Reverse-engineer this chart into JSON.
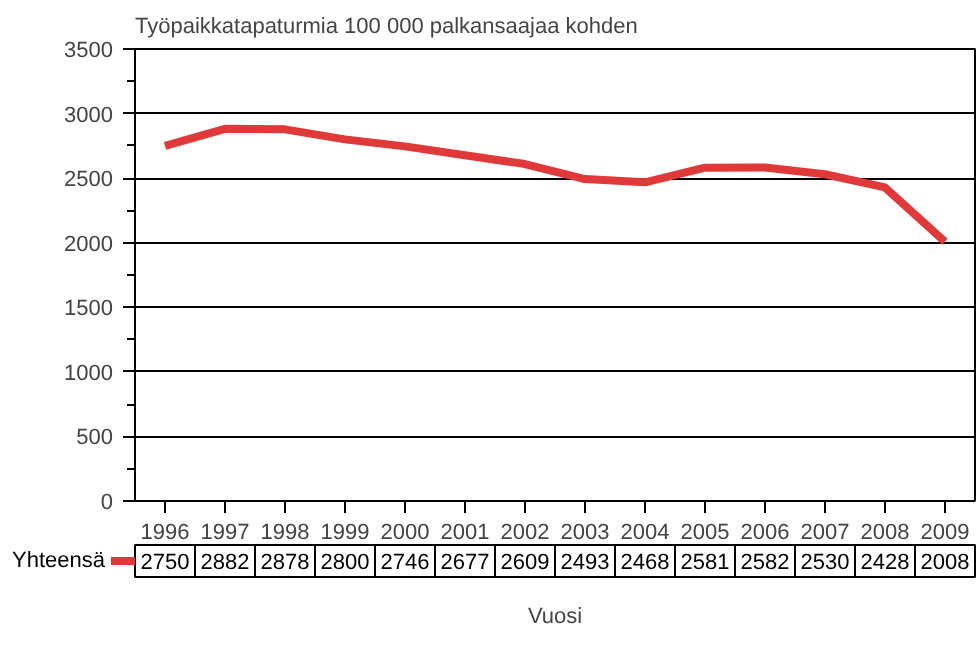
{
  "chart_data": {
    "type": "line",
    "title": "Työpaikkatapaturmia 100 000 palkansaajaa kohden",
    "xlabel": "Vuosi",
    "categories": [
      "1996",
      "1997",
      "1998",
      "1999",
      "2000",
      "2001",
      "2002",
      "2003",
      "2004",
      "2005",
      "2006",
      "2007",
      "2008",
      "2009"
    ],
    "series": [
      {
        "name": "Yhteensä",
        "color": "#e0393a",
        "values": [
          2750,
          2882,
          2878,
          2800,
          2746,
          2677,
          2609,
          2493,
          2468,
          2581,
          2582,
          2530,
          2428,
          2008
        ]
      }
    ],
    "ylim": [
      0,
      3500
    ],
    "yticks": [
      0,
      500,
      1000,
      1500,
      2000,
      2500,
      3000,
      3500
    ],
    "grid": "y",
    "data_labels": true,
    "line_style": "solid",
    "marker": "none"
  }
}
